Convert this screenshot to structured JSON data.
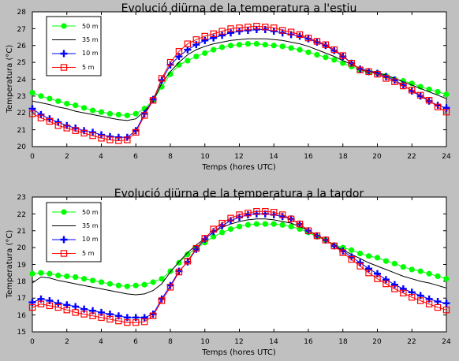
{
  "colors": {
    "figure_background": "#c0c0c0",
    "plot_background": "#ffffff",
    "series_50m": "#00ff00",
    "series_35m": "#000000",
    "series_10m": "#0000ff",
    "series_5m": "#ff0000"
  },
  "chart_data": [
    {
      "type": "line",
      "title": "Evolució diürna de la temperatura a l'estiu",
      "xlabel": "Temps (hores UTC)",
      "ylabel": "Temperatura (°C)",
      "xlim": [
        0,
        24
      ],
      "ylim": [
        20,
        28
      ],
      "xticks": [
        "0",
        "2",
        "4",
        "6",
        "8",
        "10",
        "12",
        "14",
        "16",
        "18",
        "20",
        "22",
        "24"
      ],
      "yticks": [
        "20",
        "21",
        "22",
        "23",
        "24",
        "25",
        "26",
        "27",
        "28"
      ],
      "grid": false,
      "legend_position": "top-left",
      "x": [
        0,
        0.5,
        1,
        1.5,
        2,
        2.5,
        3,
        3.5,
        4,
        4.5,
        5,
        5.5,
        6,
        6.5,
        7,
        7.5,
        8,
        8.5,
        9,
        9.5,
        10,
        10.5,
        11,
        11.5,
        12,
        12.5,
        13,
        13.5,
        14,
        14.5,
        15,
        15.5,
        16,
        16.5,
        17,
        17.5,
        18,
        18.5,
        19,
        19.5,
        20,
        20.5,
        21,
        21.5,
        22,
        22.5,
        23,
        23.5,
        24
      ],
      "series": [
        {
          "name": "50 m",
          "marker": "circle",
          "color": "#00ff00",
          "values": [
            23.2,
            23.0,
            22.85,
            22.7,
            22.55,
            22.45,
            22.3,
            22.15,
            22.05,
            21.95,
            21.9,
            21.85,
            21.95,
            22.25,
            22.75,
            23.55,
            24.3,
            24.85,
            25.1,
            25.35,
            25.55,
            25.75,
            25.9,
            26.0,
            26.05,
            26.1,
            26.1,
            26.05,
            26.0,
            25.95,
            25.85,
            25.75,
            25.6,
            25.45,
            25.3,
            25.15,
            24.95,
            24.75,
            24.55,
            24.4,
            24.35,
            24.2,
            24.0,
            23.9,
            23.75,
            23.55,
            23.4,
            23.25,
            23.1
          ]
        },
        {
          "name": "35 m",
          "marker": "none",
          "color": "#000000",
          "values": [
            22.7,
            22.6,
            22.5,
            22.35,
            22.25,
            22.1,
            22.0,
            21.9,
            21.8,
            21.7,
            21.6,
            21.55,
            21.65,
            22.1,
            22.7,
            23.75,
            24.45,
            25.0,
            25.45,
            25.75,
            25.95,
            26.1,
            26.2,
            26.3,
            26.35,
            26.4,
            26.4,
            26.4,
            26.35,
            26.3,
            26.2,
            26.1,
            25.95,
            25.75,
            25.55,
            25.35,
            25.1,
            24.9,
            24.6,
            24.5,
            24.4,
            24.25,
            24.05,
            23.85,
            23.65,
            23.45,
            23.25,
            23.05,
            22.85
          ]
        },
        {
          "name": "10 m",
          "marker": "plus",
          "color": "#0000ff",
          "values": [
            22.25,
            21.9,
            21.65,
            21.45,
            21.25,
            21.1,
            20.95,
            20.85,
            20.7,
            20.6,
            20.55,
            20.55,
            20.95,
            21.95,
            22.8,
            23.95,
            24.85,
            25.35,
            25.75,
            26.05,
            26.3,
            26.45,
            26.6,
            26.75,
            26.85,
            26.9,
            26.95,
            26.95,
            26.85,
            26.75,
            26.65,
            26.55,
            26.4,
            26.2,
            26.0,
            25.7,
            25.35,
            24.95,
            24.6,
            24.45,
            24.35,
            24.15,
            23.95,
            23.65,
            23.3,
            23.0,
            22.7,
            22.45,
            22.3
          ]
        },
        {
          "name": "5 m",
          "marker": "square",
          "color": "#ff0000",
          "values": [
            21.95,
            21.7,
            21.5,
            21.25,
            21.1,
            20.95,
            20.8,
            20.65,
            20.5,
            20.4,
            20.35,
            20.4,
            20.85,
            21.85,
            22.75,
            24.05,
            25.0,
            25.65,
            26.1,
            26.35,
            26.55,
            26.7,
            26.85,
            27.0,
            27.05,
            27.1,
            27.15,
            27.1,
            27.05,
            26.9,
            26.8,
            26.65,
            26.45,
            26.25,
            26.05,
            25.75,
            25.4,
            24.95,
            24.55,
            24.45,
            24.3,
            24.05,
            23.85,
            23.6,
            23.35,
            23.05,
            22.75,
            22.35,
            22.05
          ]
        }
      ]
    },
    {
      "type": "line",
      "title": "Evolució diürna de la temperatura a la tardor",
      "xlabel": "Temps (hores UTC)",
      "ylabel": "Temperatura (°C)",
      "xlim": [
        0,
        24
      ],
      "ylim": [
        15,
        23
      ],
      "xticks": [
        "0",
        "2",
        "4",
        "6",
        "8",
        "10",
        "12",
        "14",
        "16",
        "18",
        "20",
        "22",
        "24"
      ],
      "yticks": [
        "15",
        "16",
        "17",
        "18",
        "19",
        "20",
        "21",
        "22",
        "23"
      ],
      "grid": false,
      "legend_position": "top-left",
      "x": [
        0,
        0.5,
        1,
        1.5,
        2,
        2.5,
        3,
        3.5,
        4,
        4.5,
        5,
        5.5,
        6,
        6.5,
        7,
        7.5,
        8,
        8.5,
        9,
        9.5,
        10,
        10.5,
        11,
        11.5,
        12,
        12.5,
        13,
        13.5,
        14,
        14.5,
        15,
        15.5,
        16,
        16.5,
        17,
        17.5,
        18,
        18.5,
        19,
        19.5,
        20,
        20.5,
        21,
        21.5,
        22,
        22.5,
        23,
        23.5,
        24
      ],
      "series": [
        {
          "name": "50 m",
          "marker": "circle",
          "color": "#00ff00",
          "values": [
            18.45,
            18.5,
            18.45,
            18.35,
            18.3,
            18.25,
            18.15,
            18.05,
            17.95,
            17.85,
            17.75,
            17.7,
            17.75,
            17.8,
            17.95,
            18.15,
            18.6,
            19.1,
            19.6,
            19.95,
            20.3,
            20.65,
            20.9,
            21.1,
            21.25,
            21.35,
            21.4,
            21.4,
            21.4,
            21.35,
            21.25,
            21.1,
            20.9,
            20.65,
            20.45,
            20.15,
            20.0,
            19.85,
            19.65,
            19.5,
            19.4,
            19.2,
            19.05,
            18.85,
            18.7,
            18.6,
            18.45,
            18.3,
            18.15
          ]
        },
        {
          "name": "35 m",
          "marker": "none",
          "color": "#000000",
          "values": [
            17.9,
            18.25,
            18.2,
            18.05,
            17.95,
            17.85,
            17.75,
            17.65,
            17.55,
            17.45,
            17.35,
            17.25,
            17.2,
            17.25,
            17.45,
            17.85,
            18.55,
            19.15,
            19.7,
            20.15,
            20.55,
            20.9,
            21.2,
            21.4,
            21.55,
            21.65,
            21.7,
            21.7,
            21.65,
            21.55,
            21.45,
            21.25,
            21.0,
            20.75,
            20.45,
            20.15,
            19.85,
            19.6,
            19.35,
            19.1,
            18.9,
            18.7,
            18.5,
            18.3,
            18.15,
            18.0,
            17.9,
            17.75,
            17.6
          ]
        },
        {
          "name": "10 m",
          "marker": "plus",
          "color": "#0000ff",
          "values": [
            16.75,
            16.95,
            16.85,
            16.7,
            16.6,
            16.5,
            16.35,
            16.25,
            16.15,
            16.05,
            15.95,
            15.85,
            15.85,
            15.85,
            16.05,
            16.95,
            17.75,
            18.6,
            19.15,
            19.9,
            20.5,
            20.95,
            21.3,
            21.6,
            21.8,
            21.95,
            22.0,
            22.0,
            21.95,
            21.85,
            21.7,
            21.4,
            21.0,
            20.7,
            20.45,
            20.1,
            19.8,
            19.45,
            19.1,
            18.75,
            18.45,
            18.1,
            17.8,
            17.55,
            17.35,
            17.15,
            16.95,
            16.8,
            16.7
          ]
        },
        {
          "name": "5 m",
          "marker": "square",
          "color": "#ff0000",
          "values": [
            16.45,
            16.65,
            16.55,
            16.45,
            16.3,
            16.15,
            16.05,
            15.95,
            15.85,
            15.75,
            15.65,
            15.55,
            15.55,
            15.6,
            15.95,
            16.85,
            17.65,
            18.55,
            19.2,
            19.95,
            20.55,
            21.1,
            21.45,
            21.75,
            21.95,
            22.05,
            22.15,
            22.15,
            22.1,
            21.95,
            21.7,
            21.4,
            21.0,
            20.7,
            20.45,
            20.1,
            19.7,
            19.3,
            18.9,
            18.5,
            18.15,
            17.85,
            17.55,
            17.3,
            17.05,
            16.85,
            16.65,
            16.45,
            16.3
          ]
        }
      ]
    }
  ]
}
